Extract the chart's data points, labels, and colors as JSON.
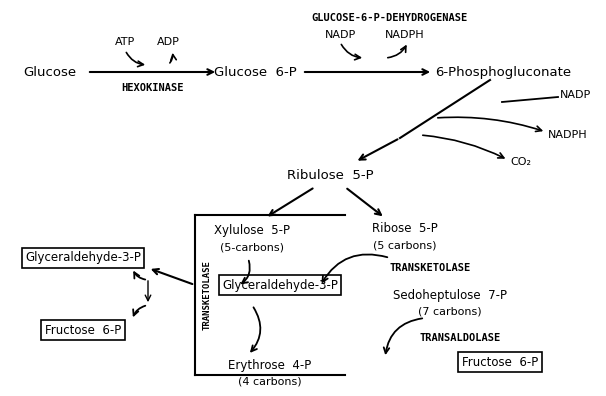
{
  "bg_color": "#ffffff",
  "text_color": "#000000",
  "figsize": [
    6.06,
    3.96
  ],
  "dpi": 100,
  "labels": {
    "glucose": "Glucose",
    "glucose6p": "Glucose  6-P",
    "phosphogluconate": "6-Phosphogluconate",
    "ribulose5p": "Ribulose  5-P",
    "xylulose5p": "Xylulose  5-P",
    "xylulose5p_sub": "(5-carbons)",
    "ribose5p": "Ribose  5-P",
    "ribose5p_sub": "(5 carbons)",
    "glyc3p_box": "Glyceraldehyde-3-P",
    "glyc3p_left": "Glyceraldehyde-3-P",
    "fructose6p_left": "Fructose  6-P",
    "sedoheptulose": "Sedoheptulose  7-P",
    "sedoheptulose_sub": "(7 carbons)",
    "erythrose4p": "Erythrose  4-P",
    "erythrose4p_sub": "(4 carbons)",
    "fructose6p_right": "Fructose  6-P",
    "hexokinase": "HEXOKINASE",
    "glc6pdh": "GLUCOSE-6-P-DEHYDROGENASE",
    "transketolase_vert": "TRANSKETOLASE",
    "transketolase": "TRANSKETOLASE",
    "transaldolase": "TRANSALDOLASE",
    "atp": "ATP",
    "adp": "ADP",
    "nadp1": "NADP",
    "nadph1": "NADPH",
    "nadp2": "NADP",
    "nadph2": "NADPH",
    "co2": "CO₂"
  }
}
